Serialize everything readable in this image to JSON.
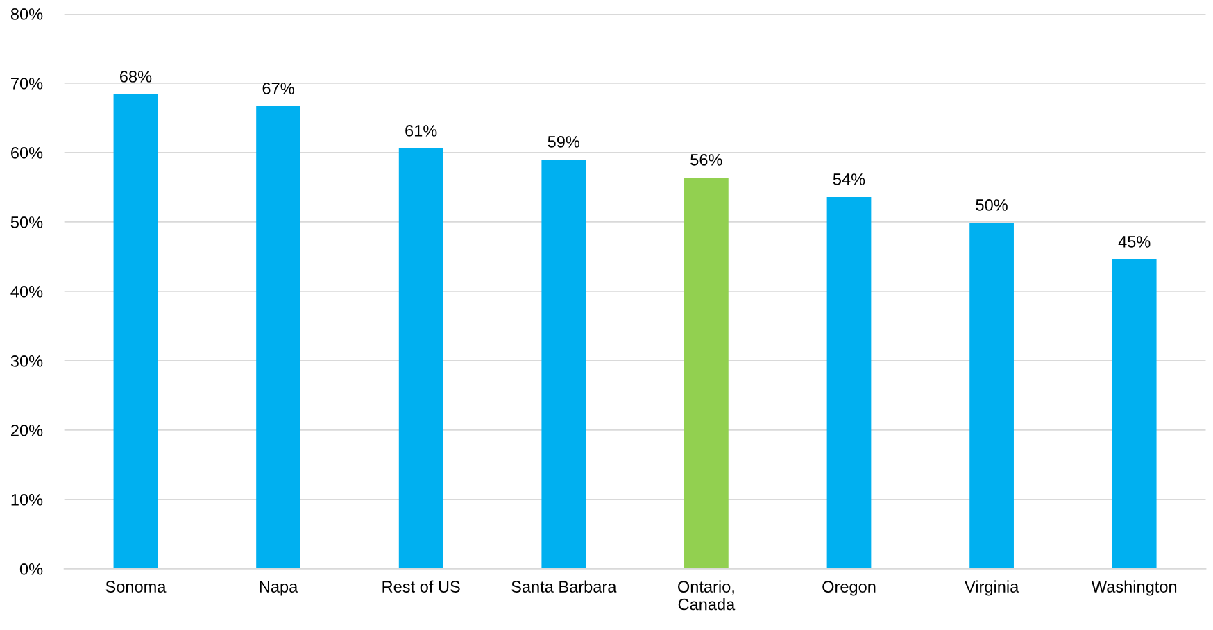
{
  "chart_data": {
    "type": "bar",
    "categories": [
      "Sonoma",
      "Napa",
      "Rest of US",
      "Santa Barbara",
      "Ontario,\nCanada",
      "Oregon",
      "Virginia",
      "Washington"
    ],
    "values": [
      68.4,
      66.7,
      60.6,
      59.0,
      56.4,
      53.6,
      49.9,
      44.6
    ],
    "colors": [
      "#00b0f0",
      "#00b0f0",
      "#00b0f0",
      "#00b0f0",
      "#92d050",
      "#00b0f0",
      "#00b0f0",
      "#00b0f0"
    ],
    "value_labels": [
      "68%",
      "67%",
      "61%",
      "59%",
      "56%",
      "54%",
      "50%",
      "45%"
    ],
    "ylim": [
      0,
      80
    ],
    "yticks": [
      {
        "value": 0,
        "label": "0%"
      },
      {
        "value": 10,
        "label": "10%"
      },
      {
        "value": 20,
        "label": "20%"
      },
      {
        "value": 30,
        "label": "30%"
      },
      {
        "value": 40,
        "label": "40%"
      },
      {
        "value": 50,
        "label": "50%"
      },
      {
        "value": 60,
        "label": "60%"
      },
      {
        "value": 70,
        "label": "70%"
      },
      {
        "value": 80,
        "label": "80%"
      }
    ],
    "grid": "y"
  }
}
